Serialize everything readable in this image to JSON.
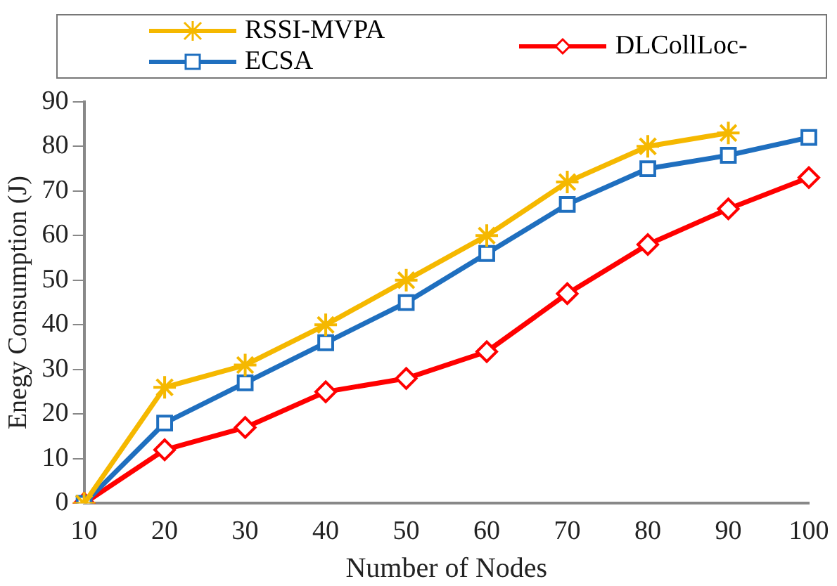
{
  "chart_data": {
    "type": "line",
    "xlabel": "Number of Nodes",
    "ylabel": "Enegy Consumption (J)",
    "categories": [
      "10",
      "20",
      "30",
      "40",
      "50",
      "60",
      "70",
      "80",
      "90",
      "100"
    ],
    "ylim": [
      0,
      90
    ],
    "yticks": [
      0,
      10,
      20,
      30,
      40,
      50,
      60,
      70,
      80,
      90
    ],
    "grid": false,
    "legend": "top",
    "line_style": "solid",
    "series": [
      {
        "name": "RSSI-MVPA",
        "color": "#f5b800",
        "marker": "cross",
        "values": [
          0,
          26,
          31,
          40,
          50,
          60,
          72,
          80,
          83,
          null
        ]
      },
      {
        "name": "ECSA",
        "color": "#1f6fbf",
        "marker": "square",
        "values": [
          0,
          18,
          27,
          36,
          45,
          56,
          67,
          75,
          78,
          82
        ]
      },
      {
        "name": "DLCollLoc-",
        "color": "#ff0000",
        "marker": "diamond",
        "values": [
          0,
          12,
          17,
          25,
          28,
          34,
          47,
          58,
          66,
          73
        ]
      }
    ]
  }
}
